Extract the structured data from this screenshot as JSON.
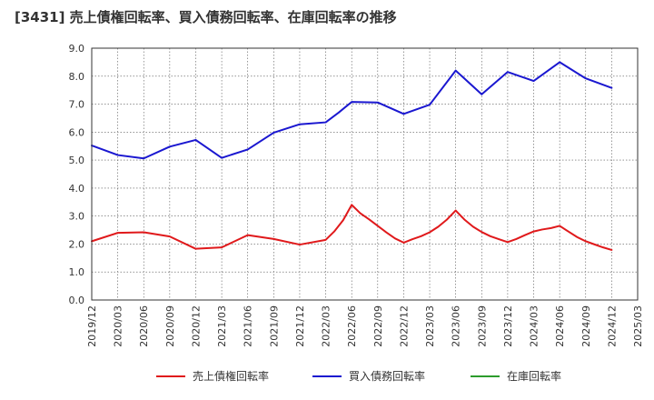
{
  "chart_data": {
    "type": "line",
    "title": "[3431]  売上債権回転率、買入債務回転率、在庫回転率の推移",
    "xlabel": "",
    "ylabel": "",
    "ylim": [
      0,
      9
    ],
    "yticks": [
      "0.0",
      "1.0",
      "2.0",
      "3.0",
      "4.0",
      "5.0",
      "6.0",
      "7.0",
      "8.0",
      "9.0"
    ],
    "xticks": [
      "2019/12",
      "2020/03",
      "2020/06",
      "2020/09",
      "2020/12",
      "2021/03",
      "2021/06",
      "2021/09",
      "2021/12",
      "2022/03",
      "2022/06",
      "2022/09",
      "2022/12",
      "2023/03",
      "2023/06",
      "2023/09",
      "2023/12",
      "2024/03",
      "2024/06",
      "2024/09",
      "2024/12",
      "2025/03"
    ],
    "grid": true,
    "legend_position": "bottom",
    "series": [
      {
        "name": "売上債権回転率",
        "color": "#e0191b",
        "x": [
          0,
          1,
          2,
          3,
          4,
          5,
          6,
          7,
          8,
          9,
          9.33,
          9.67,
          10,
          10.33,
          10.67,
          11,
          11.33,
          11.67,
          12,
          12.33,
          12.67,
          13,
          13.33,
          13.67,
          14,
          14.33,
          14.67,
          15,
          15.33,
          15.67,
          16,
          16.33,
          16.67,
          17,
          17.33,
          17.67,
          18,
          18.33,
          18.67,
          19,
          19.33,
          19.67,
          20
        ],
        "values": [
          2.1,
          2.4,
          2.42,
          2.27,
          1.83,
          1.88,
          2.32,
          2.18,
          1.98,
          2.15,
          2.45,
          2.85,
          3.4,
          3.1,
          2.88,
          2.65,
          2.42,
          2.2,
          2.05,
          2.17,
          2.28,
          2.42,
          2.62,
          2.88,
          3.2,
          2.88,
          2.62,
          2.43,
          2.28,
          2.17,
          2.07,
          2.18,
          2.32,
          2.45,
          2.52,
          2.57,
          2.65,
          2.45,
          2.25,
          2.1,
          1.99,
          1.88,
          1.79
        ]
      },
      {
        "name": "買入債務回転率",
        "color": "#1a17d0",
        "x": [
          0,
          1,
          2,
          3,
          4,
          5,
          6,
          7,
          8,
          9,
          9.5,
          10,
          11,
          12,
          13,
          14,
          15,
          16,
          17,
          18,
          19,
          20
        ],
        "values": [
          5.52,
          5.18,
          5.06,
          5.48,
          5.72,
          5.08,
          5.38,
          5.98,
          6.28,
          6.35,
          6.7,
          7.08,
          7.06,
          6.65,
          6.98,
          8.2,
          7.35,
          8.15,
          7.83,
          8.5,
          7.92,
          7.58
        ]
      },
      {
        "name": "在庫回転率",
        "color": "#2c9c2c",
        "x": [],
        "values": []
      }
    ]
  }
}
